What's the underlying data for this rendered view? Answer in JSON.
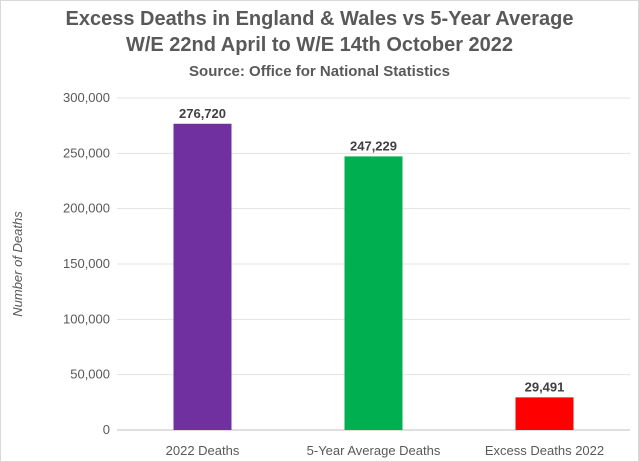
{
  "chart_data": {
    "type": "bar",
    "title": "Excess Deaths in England & Wales vs 5-Year Average",
    "subtitle": "W/E 22nd April to W/E 14th October 2022",
    "source": "Source: Office for National Statistics",
    "categories": [
      "2022 Deaths",
      "5-Year Average Deaths",
      "Excess Deaths 2022"
    ],
    "values": [
      276720,
      247229,
      29491
    ],
    "data_labels": [
      "276,720",
      "247,229",
      "29,491"
    ],
    "colors": [
      "#7030a0",
      "#00b050",
      "#ff0000"
    ],
    "xlabel": "",
    "ylabel": "Number of Deaths",
    "ylim": [
      0,
      300000
    ],
    "yticks": [
      0,
      50000,
      100000,
      150000,
      200000,
      250000,
      300000
    ],
    "ytick_labels": [
      "0",
      "50,000",
      "100,000",
      "150,000",
      "200,000",
      "250,000",
      "300,000"
    ],
    "grid": true,
    "legend": "none"
  }
}
